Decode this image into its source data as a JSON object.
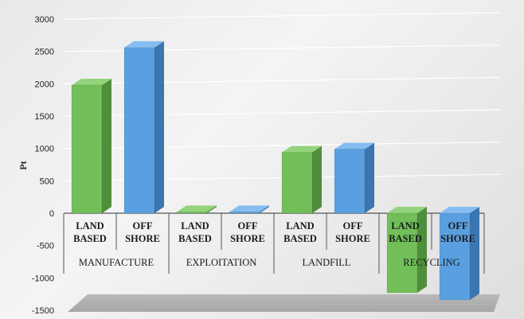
{
  "chart_data": {
    "type": "bar",
    "title": "",
    "ylabel": "Pt",
    "ylim": [
      -1500,
      3000
    ],
    "yticks": [
      -1500,
      -1000,
      -500,
      0,
      500,
      1000,
      1500,
      2000,
      2500,
      3000
    ],
    "grid": true,
    "groups": [
      "MANUFACTURE",
      "EXPLOITATION",
      "LANDFILL",
      "RECYCLING"
    ],
    "categories": [
      [
        "LAND",
        "BASED"
      ],
      [
        "OFF",
        "SHORE"
      ],
      [
        "LAND",
        "BASED"
      ],
      [
        "OFF",
        "SHORE"
      ],
      [
        "LAND",
        "BASED"
      ],
      [
        "OFF",
        "SHORE"
      ],
      [
        "LAND",
        "BASED"
      ],
      [
        "OFF",
        "SHORE"
      ]
    ],
    "values": [
      1980,
      2560,
      20,
      20,
      940,
      990,
      -1230,
      -1340
    ],
    "colors": {
      "land_based": "#72bf5a",
      "off_shore": "#5aa0e0"
    }
  }
}
